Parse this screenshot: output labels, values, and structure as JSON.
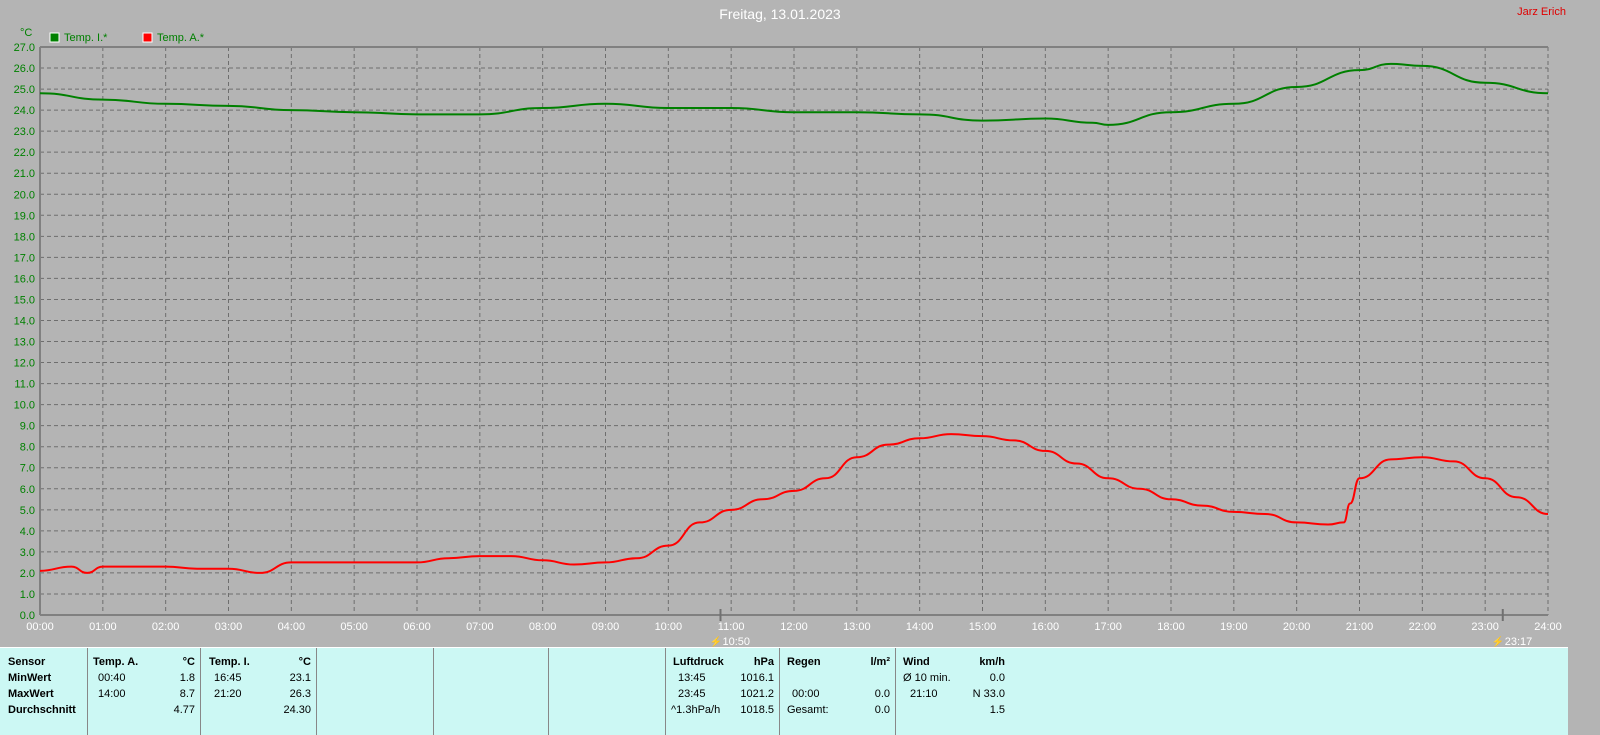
{
  "chart_data": {
    "type": "line",
    "title": "Freitag, 13.01.2023",
    "author": "Jarz Erich",
    "ylabel": "°C",
    "ylim": [
      0,
      27
    ],
    "yticks": [
      "0.0",
      "1.0",
      "2.0",
      "3.0",
      "4.0",
      "5.0",
      "6.0",
      "7.0",
      "8.0",
      "9.0",
      "10.0",
      "11.0",
      "12.0",
      "13.0",
      "14.0",
      "15.0",
      "16.0",
      "17.0",
      "18.0",
      "19.0",
      "20.0",
      "21.0",
      "22.0",
      "23.0",
      "24.0",
      "25.0",
      "26.0",
      "27.0"
    ],
    "xticks": [
      "00:00",
      "01:00",
      "02:00",
      "03:00",
      "04:00",
      "05:00",
      "06:00",
      "07:00",
      "08:00",
      "09:00",
      "10:00",
      "11:00",
      "12:00",
      "13:00",
      "14:00",
      "15:00",
      "16:00",
      "17:00",
      "18:00",
      "19:00",
      "20:00",
      "21:00",
      "22:00",
      "23:00",
      "24:00"
    ],
    "grid": true,
    "legend": "top-left",
    "markers": [
      {
        "time": "10:50",
        "hour": 10.83
      },
      {
        "time": "23:17",
        "hour": 23.28
      }
    ],
    "series": [
      {
        "name": "Temp. I.*",
        "color": "#008000",
        "x": [
          0,
          1,
          2,
          3,
          4,
          5,
          6,
          7,
          8,
          9,
          10,
          11,
          12,
          13,
          14,
          15,
          16,
          16.75,
          17,
          18,
          19,
          20,
          21,
          21.5,
          22,
          23,
          24
        ],
        "y": [
          24.8,
          24.5,
          24.3,
          24.2,
          24.0,
          23.9,
          23.8,
          23.8,
          24.1,
          24.3,
          24.1,
          24.1,
          23.9,
          23.9,
          23.8,
          23.5,
          23.6,
          23.4,
          23.3,
          23.9,
          24.3,
          25.1,
          25.9,
          26.2,
          26.1,
          25.3,
          24.8
        ]
      },
      {
        "name": "Temp. A.*",
        "color": "#ff0000",
        "x": [
          0,
          0.5,
          0.75,
          1,
          2,
          2.5,
          3,
          3.5,
          4,
          5,
          6,
          6.5,
          7,
          7.5,
          8,
          8.5,
          9,
          9.5,
          10,
          10.5,
          11,
          11.5,
          12,
          12.5,
          13,
          13.5,
          14,
          14.5,
          15,
          15.5,
          16,
          16.5,
          17,
          17.5,
          18,
          18.5,
          19,
          19.5,
          20,
          20.5,
          20.75,
          20.85,
          21,
          21.5,
          22,
          22.5,
          23,
          23.5,
          24
        ],
        "y": [
          2.1,
          2.3,
          2.0,
          2.3,
          2.3,
          2.2,
          2.2,
          2.0,
          2.5,
          2.5,
          2.5,
          2.7,
          2.8,
          2.8,
          2.6,
          2.4,
          2.5,
          2.7,
          3.3,
          4.4,
          5.0,
          5.5,
          5.9,
          6.5,
          7.5,
          8.1,
          8.4,
          8.6,
          8.5,
          8.3,
          7.8,
          7.2,
          6.5,
          6.0,
          5.5,
          5.2,
          4.9,
          4.8,
          4.4,
          4.3,
          4.4,
          5.3,
          6.5,
          7.4,
          7.5,
          7.3,
          6.5,
          5.6,
          4.8
        ]
      }
    ]
  },
  "table": {
    "sensor": {
      "h": "Sensor",
      "r1": "MinWert",
      "r2": "MaxWert",
      "r3": "Durchschnitt"
    },
    "tempA": {
      "h": "Temp. A.",
      "u": "°C",
      "min_t": "00:40",
      "min": "1.8",
      "max_t": "14:00",
      "max": "8.7",
      "avg": "4.77"
    },
    "tempI": {
      "h": "Temp. I.",
      "u": "°C",
      "min_t": "16:45",
      "min": "23.1",
      "max_t": "21:20",
      "max": "26.3",
      "avg": "24.30"
    },
    "luft": {
      "h": "Luftdruck",
      "u": "hPa",
      "t1": "13:45",
      "v1": "1016.1",
      "t2": "23:45",
      "v2": "1021.2",
      "t3": "^1.3hPa/h",
      "v3": "1018.5"
    },
    "regen": {
      "h": "Regen",
      "u": "l/m²",
      "t2": "00:00",
      "v2": "0.0",
      "t3": "Gesamt:",
      "v3": "0.0"
    },
    "wind": {
      "h": "Wind",
      "u": "km/h",
      "t1": "Ø 10 min.",
      "v1": "0.0",
      "t2": "21:10",
      "v2": "N 33.0",
      "v3": "1.5"
    }
  }
}
